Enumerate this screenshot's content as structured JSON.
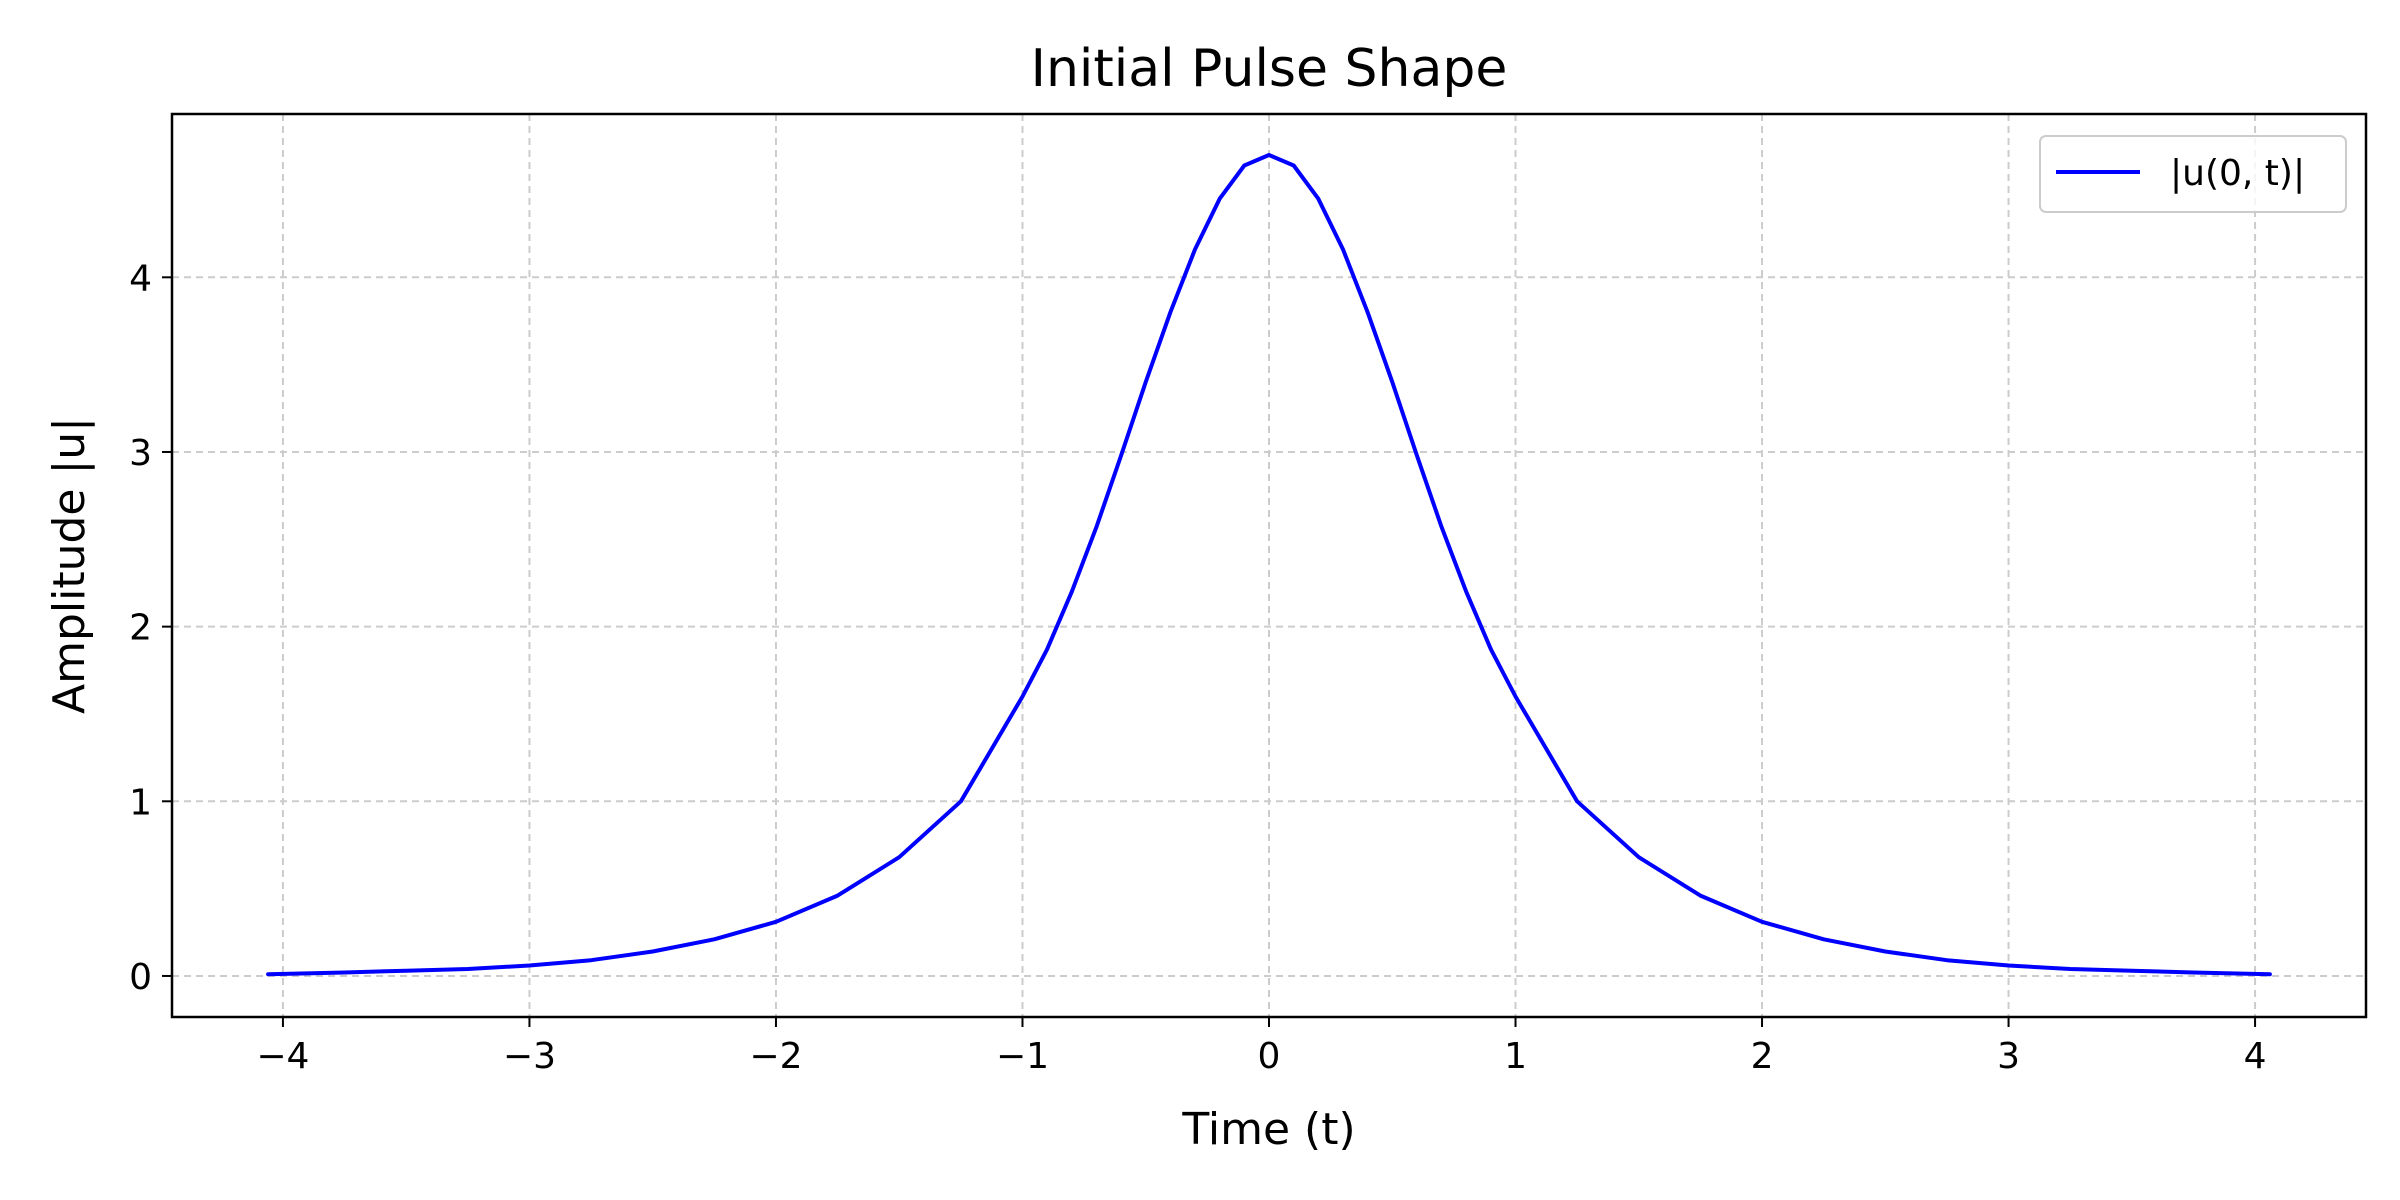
{
  "chart_data": {
    "type": "line",
    "title": "Initial Pulse Shape",
    "xlabel": "Time (t)",
    "ylabel": "Amplitude |u|",
    "xlim": [
      -4.45,
      4.45
    ],
    "ylim": [
      -0.235,
      4.935
    ],
    "xticks": [
      -4,
      -3,
      -2,
      -1,
      0,
      1,
      2,
      3,
      4
    ],
    "xtick_labels": [
      "−4",
      "−3",
      "−2",
      "−1",
      "0",
      "1",
      "2",
      "3",
      "4"
    ],
    "yticks": [
      0,
      1,
      2,
      3,
      4
    ],
    "ytick_labels": [
      "0",
      "1",
      "2",
      "3",
      "4"
    ],
    "grid": true,
    "grid_style": "dashed",
    "legend_position": "top-right",
    "series": [
      {
        "name": "|u(0, t)|",
        "color": "#0000ff",
        "x": [
          -4.06,
          -3.75,
          -3.5,
          -3.25,
          -3.0,
          -2.75,
          -2.5,
          -2.25,
          -2.0,
          -1.75,
          -1.5,
          -1.25,
          -1.0,
          -0.9,
          -0.8,
          -0.7,
          -0.6,
          -0.5,
          -0.4,
          -0.3,
          -0.2,
          -0.1,
          0.0,
          0.1,
          0.2,
          0.3,
          0.4,
          0.5,
          0.6,
          0.7,
          0.8,
          0.9,
          1.0,
          1.25,
          1.5,
          1.75,
          2.0,
          2.25,
          2.5,
          2.75,
          3.0,
          3.25,
          3.5,
          3.75,
          4.06
        ],
        "y": [
          0.01,
          0.02,
          0.03,
          0.04,
          0.06,
          0.09,
          0.14,
          0.21,
          0.31,
          0.46,
          0.68,
          1.0,
          1.6,
          1.87,
          2.2,
          2.57,
          2.98,
          3.4,
          3.8,
          4.16,
          4.45,
          4.64,
          4.7,
          4.64,
          4.45,
          4.16,
          3.8,
          3.4,
          2.98,
          2.57,
          2.2,
          1.87,
          1.6,
          1.0,
          0.68,
          0.46,
          0.31,
          0.21,
          0.14,
          0.09,
          0.06,
          0.04,
          0.03,
          0.02,
          0.01
        ]
      }
    ]
  }
}
